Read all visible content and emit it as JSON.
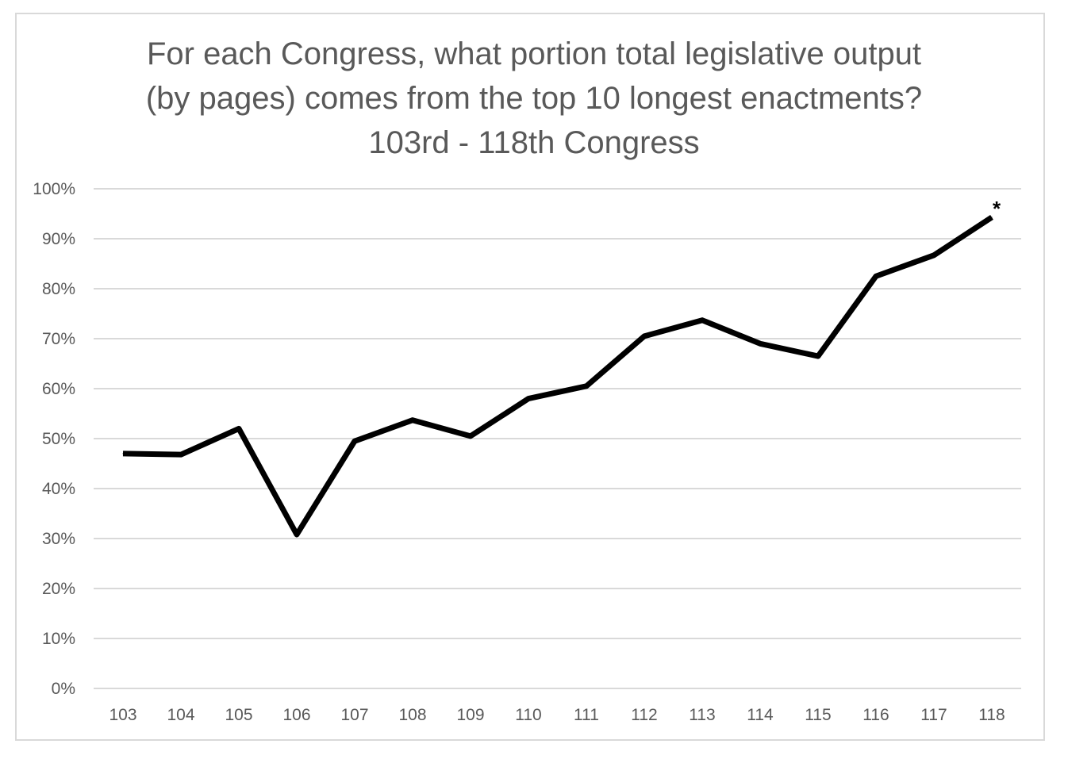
{
  "chart_data": {
    "type": "line",
    "title": [
      "For each Congress, what portion total legislative output",
      "(by pages) comes from the top 10 longest enactments?",
      "103rd - 118th Congress"
    ],
    "xlabel": "",
    "ylabel": "",
    "categories": [
      "103",
      "104",
      "105",
      "106",
      "107",
      "108",
      "109",
      "110",
      "111",
      "112",
      "113",
      "114",
      "115",
      "116",
      "117",
      "118"
    ],
    "series": [
      {
        "values": [
          47.0,
          46.8,
          52.0,
          30.8,
          49.5,
          53.7,
          50.5,
          58.0,
          60.5,
          70.5,
          73.7,
          69.0,
          66.5,
          82.5,
          86.7,
          94.3
        ]
      }
    ],
    "ylim": [
      0,
      100
    ],
    "yticks": [
      0,
      10,
      20,
      30,
      40,
      50,
      60,
      70,
      80,
      90,
      100
    ],
    "ytick_labels": [
      "0%",
      "10%",
      "20%",
      "30%",
      "40%",
      "50%",
      "60%",
      "70%",
      "80%",
      "90%",
      "100%"
    ],
    "grid": true,
    "line_color": "#000000",
    "grid_color": "#d9d9d9",
    "annotation": {
      "text": "*",
      "category": "118"
    }
  }
}
